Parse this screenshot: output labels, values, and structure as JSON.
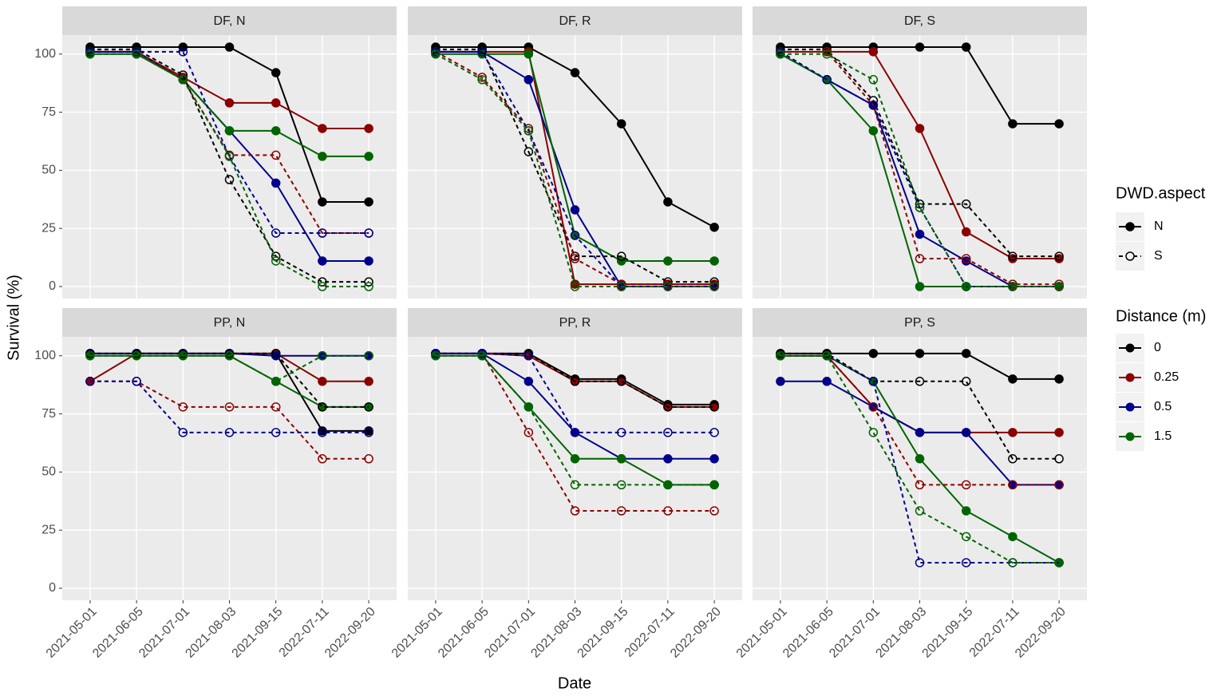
{
  "chart_data": {
    "type": "line",
    "xlabel": "Date",
    "ylabel": "Survival (%)",
    "categories": [
      "2021-05-01",
      "2021-06-05",
      "2021-07-01",
      "2021-08-03",
      "2021-09-15",
      "2022-07-11",
      "2022-09-20"
    ],
    "ylim": [
      -5.15,
      108.15
    ],
    "yticks": [
      0,
      25,
      50,
      75,
      100
    ],
    "grid": true,
    "legends": {
      "aspect": {
        "title": "DWD.aspect",
        "entries": [
          {
            "label": "N",
            "linestyle": "solid"
          },
          {
            "label": "S",
            "linestyle": "dashed"
          }
        ]
      },
      "distance": {
        "title": "Distance (m)",
        "entries": [
          {
            "label": "0",
            "color": "#000000"
          },
          {
            "label": "0.25",
            "color": "#8b0000"
          },
          {
            "label": "0.5",
            "color": "#00008b"
          },
          {
            "label": "1.5",
            "color": "#006400"
          }
        ]
      }
    },
    "panels": [
      {
        "title": "DF, N",
        "series": [
          {
            "aspect": "N",
            "distance": "0",
            "values": [
              103,
              103,
              103,
              103,
              92,
              36.4,
              36.4
            ]
          },
          {
            "aspect": "N",
            "distance": "0.25",
            "values": [
              101,
              101,
              90,
              79,
              79,
              68,
              68
            ]
          },
          {
            "aspect": "N",
            "distance": "0.5",
            "values": [
              101,
              101,
              89,
              67,
              44.5,
              11,
              11
            ]
          },
          {
            "aspect": "N",
            "distance": "1.5",
            "values": [
              100,
              100,
              89,
              67,
              67,
              56,
              56
            ]
          },
          {
            "aspect": "S",
            "distance": "0",
            "values": [
              102,
              102,
              91,
              46,
              13,
              2,
              2
            ]
          },
          {
            "aspect": "S",
            "distance": "0.25",
            "values": [
              101,
              101,
              89,
              56.5,
              56.5,
              23,
              23
            ]
          },
          {
            "aspect": "S",
            "distance": "0.5",
            "values": [
              101,
              101,
              101,
              56,
              23,
              23,
              23
            ]
          },
          {
            "aspect": "S",
            "distance": "1.5",
            "values": [
              100,
              100,
              89,
              56,
              11,
              0,
              0
            ]
          }
        ]
      },
      {
        "title": "DF, R",
        "series": [
          {
            "aspect": "N",
            "distance": "0",
            "values": [
              103,
              103,
              103,
              92,
              70,
              36.4,
              25.5
            ]
          },
          {
            "aspect": "N",
            "distance": "0.25",
            "values": [
              101,
              101,
              101,
              1,
              1,
              1,
              1
            ]
          },
          {
            "aspect": "N",
            "distance": "0.5",
            "values": [
              101,
              101,
              89,
              33,
              0,
              0,
              0
            ]
          },
          {
            "aspect": "N",
            "distance": "1.5",
            "values": [
              100,
              100,
              100,
              22,
              11,
              11,
              11
            ]
          },
          {
            "aspect": "S",
            "distance": "0",
            "values": [
              102,
              102,
              58,
              13,
              13,
              2,
              2
            ]
          },
          {
            "aspect": "S",
            "distance": "0.25",
            "values": [
              101,
              90,
              68,
              12,
              1,
              1,
              1
            ]
          },
          {
            "aspect": "S",
            "distance": "0.5",
            "values": [
              101,
              101,
              67,
              22,
              0,
              0,
              0
            ]
          },
          {
            "aspect": "S",
            "distance": "1.5",
            "values": [
              100,
              89,
              67,
              0,
              0,
              0,
              0
            ]
          }
        ]
      },
      {
        "title": "DF, S",
        "series": [
          {
            "aspect": "N",
            "distance": "0",
            "values": [
              103,
              103,
              103,
              103,
              103,
              70,
              70
            ]
          },
          {
            "aspect": "N",
            "distance": "0.25",
            "values": [
              101,
              101,
              101,
              68,
              23.5,
              12,
              12
            ]
          },
          {
            "aspect": "N",
            "distance": "0.5",
            "values": [
              100,
              89,
              78,
              22.5,
              11,
              0,
              0
            ]
          },
          {
            "aspect": "N",
            "distance": "1.5",
            "values": [
              100,
              89,
              67,
              0,
              0,
              0,
              0
            ]
          },
          {
            "aspect": "S",
            "distance": "0",
            "values": [
              102,
              102,
              80,
              35.5,
              35.5,
              13,
              13
            ]
          },
          {
            "aspect": "S",
            "distance": "0.25",
            "values": [
              101,
              101,
              78,
              12,
              12,
              1,
              1
            ]
          },
          {
            "aspect": "S",
            "distance": "0.5",
            "values": [
              101,
              89,
              78,
              34,
              0,
              0,
              0
            ]
          },
          {
            "aspect": "S",
            "distance": "1.5",
            "values": [
              100,
              100,
              89,
              34,
              0,
              0,
              0
            ]
          }
        ]
      },
      {
        "title": "PP, N",
        "series": [
          {
            "aspect": "N",
            "distance": "0",
            "values": [
              101,
              101,
              101,
              101,
              101,
              67.7,
              67.7
            ]
          },
          {
            "aspect": "N",
            "distance": "0.25",
            "values": [
              89,
              101,
              101,
              101,
              101,
              89,
              89
            ]
          },
          {
            "aspect": "N",
            "distance": "0.5",
            "values": [
              101,
              101,
              101,
              101,
              100,
              100,
              100
            ]
          },
          {
            "aspect": "N",
            "distance": "1.5",
            "values": [
              100,
              100,
              100,
              100,
              89,
              78,
              78
            ]
          },
          {
            "aspect": "S",
            "distance": "0",
            "values": [
              101,
              101,
              101,
              101,
              101,
              78,
              78
            ]
          },
          {
            "aspect": "S",
            "distance": "0.25",
            "values": [
              89,
              89,
              78,
              78,
              78,
              55.7,
              55.7
            ]
          },
          {
            "aspect": "S",
            "distance": "0.5",
            "values": [
              89,
              89,
              67,
              67,
              67,
              67,
              67
            ]
          },
          {
            "aspect": "S",
            "distance": "1.5",
            "values": [
              100,
              100,
              100,
              100,
              89,
              100,
              100
            ]
          }
        ]
      },
      {
        "title": "PP, R",
        "series": [
          {
            "aspect": "N",
            "distance": "0",
            "values": [
              101,
              101,
              101,
              90,
              90,
              79,
              79
            ]
          },
          {
            "aspect": "N",
            "distance": "0.25",
            "values": [
              101,
              101,
              100,
              89,
              89,
              78,
              78
            ]
          },
          {
            "aspect": "N",
            "distance": "0.5",
            "values": [
              101,
              101,
              89,
              67,
              55.7,
              55.7,
              55.7
            ]
          },
          {
            "aspect": "N",
            "distance": "1.5",
            "values": [
              100,
              100,
              78,
              55.7,
              55.7,
              44.5,
              44.5
            ]
          },
          {
            "aspect": "S",
            "distance": "0",
            "values": [
              101,
              101,
              101,
              89,
              89,
              78,
              78
            ]
          },
          {
            "aspect": "S",
            "distance": "0.25",
            "values": [
              101,
              101,
              67,
              33.3,
              33.3,
              33.3,
              33.3
            ]
          },
          {
            "aspect": "S",
            "distance": "0.5",
            "values": [
              101,
              101,
              100,
              67,
              67,
              67,
              67
            ]
          },
          {
            "aspect": "S",
            "distance": "1.5",
            "values": [
              100,
              100,
              78,
              44.5,
              44.5,
              44.5,
              44.5
            ]
          }
        ]
      },
      {
        "title": "PP, S",
        "series": [
          {
            "aspect": "N",
            "distance": "0",
            "values": [
              101,
              101,
              101,
              101,
              101,
              90,
              90
            ]
          },
          {
            "aspect": "N",
            "distance": "0.25",
            "values": [
              100,
              100,
              78,
              67,
              67,
              67,
              67
            ]
          },
          {
            "aspect": "N",
            "distance": "0.5",
            "values": [
              89,
              89,
              78,
              67,
              67,
              44.5,
              44.5
            ]
          },
          {
            "aspect": "N",
            "distance": "1.5",
            "values": [
              100,
              100,
              89,
              55.7,
              33.3,
              22.2,
              11
            ]
          },
          {
            "aspect": "S",
            "distance": "0",
            "values": [
              101,
              101,
              89,
              89,
              89,
              55.7,
              55.7
            ]
          },
          {
            "aspect": "S",
            "distance": "0.25",
            "values": [
              100,
              100,
              78,
              44.5,
              44.5,
              44.5,
              44.5
            ]
          },
          {
            "aspect": "S",
            "distance": "0.5",
            "values": [
              100,
              100,
              89,
              11,
              11,
              11,
              11
            ]
          },
          {
            "aspect": "S",
            "distance": "1.5",
            "values": [
              100,
              100,
              67,
              33.3,
              22.2,
              11,
              11
            ]
          }
        ]
      }
    ]
  }
}
